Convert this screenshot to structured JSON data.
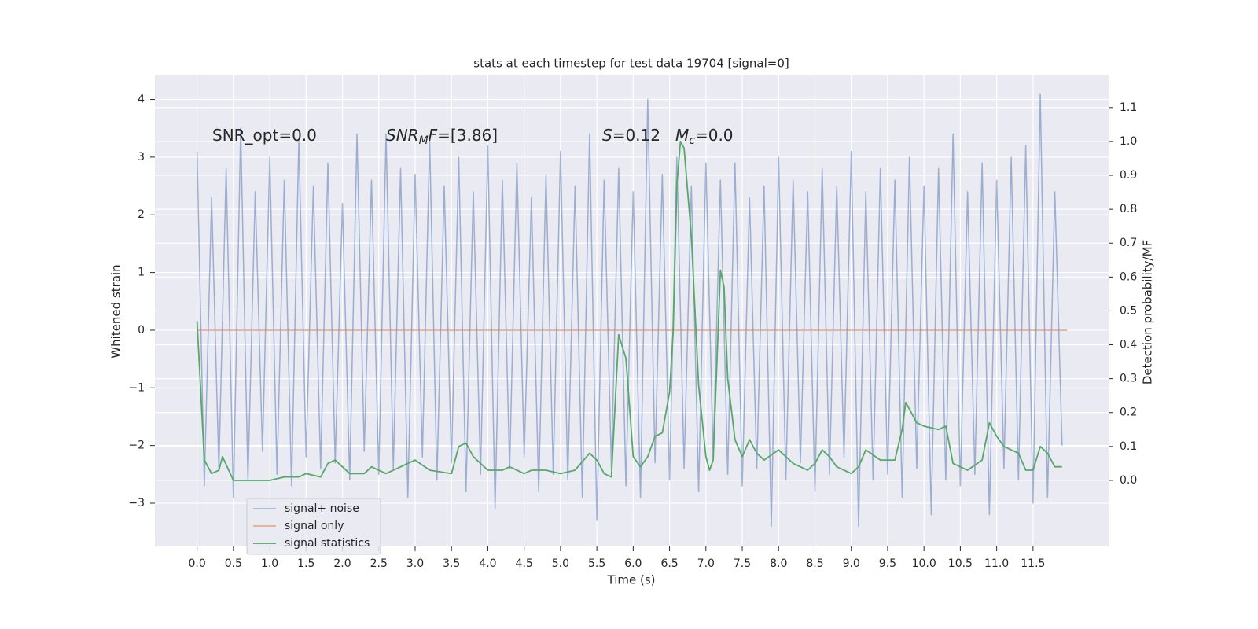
{
  "chart_data": {
    "type": "line",
    "title": "stats at each timestep for test data 19704 [signal=0]",
    "xlabel": "Time (s)",
    "ylabel": "Whitened strain",
    "y2label": "Detection probability/MF",
    "xlim": [
      -0.58,
      12.54
    ],
    "ylim": [
      -3.75,
      4.43
    ],
    "y2lim": [
      -0.195,
      1.197
    ],
    "grid": true,
    "legend": "lower left",
    "xticks": [
      {
        "value": 0,
        "label": "0.0"
      },
      0.5,
      {
        "value": 1,
        "label": "1.0"
      },
      1.5,
      {
        "value": 2,
        "label": "2.0"
      },
      2.5,
      {
        "value": 3,
        "label": "3.0"
      },
      3.5,
      {
        "value": 4,
        "label": "4.0"
      },
      4.5,
      {
        "value": 5,
        "label": "5.0"
      },
      5.5,
      {
        "value": 6,
        "label": "6.0"
      },
      6.5,
      {
        "value": 7,
        "label": "7.0"
      },
      7.5,
      {
        "value": 8,
        "label": "8.0"
      },
      8.5,
      {
        "value": 9,
        "label": "9.0"
      },
      9.5,
      {
        "value": 10,
        "label": "10.0"
      },
      10.5,
      {
        "value": 11,
        "label": "11.0"
      },
      11.5
    ],
    "yticks": [
      {
        "value": -3,
        "label": "−3"
      },
      {
        "value": -2,
        "label": "−2"
      },
      {
        "value": -1,
        "label": "−1"
      },
      0,
      1,
      2,
      3,
      4
    ],
    "y2ticks": [
      {
        "value": 0,
        "label": "0.0"
      },
      0.1,
      0.2,
      0.3,
      0.4,
      0.5,
      0.6,
      0.7,
      0.8,
      0.9,
      {
        "value": 1,
        "label": "1.0"
      },
      1.1
    ],
    "annotations": [
      [
        {
          "text": "SNR_opt=0.0"
        }
      ],
      [
        {
          "text": "SNR",
          "italic": true
        },
        {
          "text": "M",
          "italic": true,
          "sub": true
        },
        {
          "text": "F",
          "italic": true
        },
        {
          "text": "=[3.86]"
        }
      ],
      [
        {
          "text": "S",
          "italic": true
        },
        {
          "text": "=0.12"
        }
      ],
      [
        {
          "text": "M",
          "italic": true
        },
        {
          "text": "c",
          "italic": true,
          "sub": true
        },
        {
          "text": "=0.0"
        }
      ]
    ],
    "series": [
      {
        "name": "signal+ noise",
        "color": "#4c72b0",
        "axis": "y",
        "x": [
          0.0,
          0.1,
          0.2,
          0.3,
          0.4,
          0.5,
          0.6,
          0.7,
          0.8,
          0.9,
          1.0,
          1.1,
          1.2,
          1.3,
          1.4,
          1.5,
          1.6,
          1.7,
          1.8,
          1.9,
          2.0,
          2.1,
          2.2,
          2.3,
          2.4,
          2.5,
          2.6,
          2.7,
          2.8,
          2.9,
          3.0,
          3.1,
          3.2,
          3.3,
          3.4,
          3.5,
          3.6,
          3.7,
          3.8,
          3.9,
          4.0,
          4.1,
          4.2,
          4.3,
          4.4,
          4.5,
          4.6,
          4.7,
          4.8,
          4.9,
          5.0,
          5.1,
          5.2,
          5.3,
          5.4,
          5.5,
          5.6,
          5.7,
          5.8,
          5.9,
          6.0,
          6.1,
          6.2,
          6.3,
          6.4,
          6.5,
          6.6,
          6.7,
          6.8,
          6.9,
          7.0,
          7.1,
          7.2,
          7.3,
          7.4,
          7.5,
          7.6,
          7.7,
          7.8,
          7.9,
          8.0,
          8.1,
          8.2,
          8.3,
          8.4,
          8.5,
          8.6,
          8.7,
          8.8,
          8.9,
          9.0,
          9.1,
          9.2,
          9.3,
          9.4,
          9.5,
          9.6,
          9.7,
          9.8,
          9.9,
          10.0,
          10.1,
          10.2,
          10.3,
          10.4,
          10.5,
          10.6,
          10.7,
          10.8,
          10.9,
          11.0,
          11.1,
          11.2,
          11.3,
          11.4,
          11.5,
          11.6,
          11.7,
          11.8,
          11.9
        ],
        "values": [
          3.1,
          -2.7,
          2.3,
          -2.4,
          2.8,
          -2.9,
          3.5,
          -2.6,
          2.4,
          -2.1,
          3.0,
          -2.5,
          2.6,
          -2.7,
          3.3,
          -2.2,
          2.5,
          -2.4,
          2.9,
          -2.3,
          2.2,
          -2.6,
          3.4,
          -2.1,
          2.6,
          -2.5,
          3.4,
          -2.4,
          2.8,
          -2.9,
          2.7,
          -2.2,
          3.3,
          -2.6,
          2.5,
          -2.3,
          3.0,
          -2.8,
          2.4,
          -2.5,
          3.2,
          -3.1,
          2.6,
          -2.4,
          2.9,
          -2.2,
          2.3,
          -2.8,
          2.7,
          -2.5,
          3.1,
          -2.6,
          2.5,
          -2.9,
          3.4,
          -3.3,
          2.6,
          -2.4,
          2.8,
          -2.7,
          2.4,
          -2.9,
          4.0,
          -2.3,
          2.7,
          -2.6,
          3.0,
          -2.4,
          2.5,
          -2.8,
          2.9,
          -2.2,
          2.6,
          -2.5,
          2.9,
          -2.7,
          2.3,
          -2.4,
          2.5,
          -3.4,
          3.0,
          -2.6,
          2.6,
          -2.3,
          2.4,
          -2.8,
          2.8,
          -2.5,
          2.5,
          -2.2,
          3.1,
          -3.4,
          2.4,
          -2.6,
          2.8,
          -2.5,
          2.6,
          -2.9,
          3.0,
          -2.4,
          2.5,
          -3.2,
          2.8,
          -2.6,
          3.4,
          -2.7,
          2.4,
          -2.5,
          2.9,
          -3.2,
          2.6,
          -2.4,
          3.0,
          -2.6,
          3.2,
          -3.0,
          4.1,
          -2.9,
          2.4,
          -2.0
        ]
      },
      {
        "name": "signal only",
        "color": "#dd8452",
        "axis": "y",
        "x": [
          0.0,
          11.97
        ],
        "values": [
          0,
          0
        ]
      },
      {
        "name": "signal statistics",
        "color": "#55a868",
        "axis": "y2",
        "x": [
          0.0,
          0.1,
          0.2,
          0.3,
          0.35,
          0.5,
          0.7,
          0.8,
          1.0,
          1.2,
          1.4,
          1.5,
          1.7,
          1.8,
          1.9,
          2.0,
          2.1,
          2.3,
          2.4,
          2.5,
          2.6,
          2.8,
          3.0,
          3.2,
          3.5,
          3.6,
          3.7,
          3.8,
          4.0,
          4.2,
          4.3,
          4.5,
          4.6,
          4.8,
          5.0,
          5.2,
          5.4,
          5.5,
          5.6,
          5.7,
          5.8,
          5.9,
          6.0,
          6.1,
          6.2,
          6.3,
          6.4,
          6.5,
          6.55,
          6.6,
          6.65,
          6.7,
          6.8,
          6.9,
          7.0,
          7.05,
          7.1,
          7.2,
          7.25,
          7.3,
          7.4,
          7.5,
          7.6,
          7.7,
          7.8,
          8.0,
          8.2,
          8.4,
          8.5,
          8.6,
          8.7,
          8.8,
          9.0,
          9.1,
          9.2,
          9.4,
          9.6,
          9.7,
          9.75,
          9.9,
          10.0,
          10.2,
          10.3,
          10.4,
          10.6,
          10.8,
          10.9,
          11.0,
          11.1,
          11.3,
          11.4,
          11.5,
          11.6,
          11.7,
          11.8,
          11.9
        ],
        "values": [
          0.47,
          0.06,
          0.02,
          0.03,
          0.07,
          0.0,
          0.0,
          0.0,
          0.0,
          0.01,
          0.01,
          0.02,
          0.01,
          0.05,
          0.06,
          0.04,
          0.02,
          0.02,
          0.04,
          0.03,
          0.02,
          0.04,
          0.06,
          0.03,
          0.02,
          0.1,
          0.11,
          0.07,
          0.03,
          0.03,
          0.04,
          0.02,
          0.03,
          0.03,
          0.02,
          0.03,
          0.08,
          0.06,
          0.02,
          0.01,
          0.43,
          0.36,
          0.07,
          0.04,
          0.07,
          0.13,
          0.14,
          0.26,
          0.44,
          0.87,
          1.0,
          0.98,
          0.72,
          0.28,
          0.07,
          0.03,
          0.06,
          0.62,
          0.57,
          0.3,
          0.12,
          0.07,
          0.12,
          0.08,
          0.06,
          0.09,
          0.05,
          0.03,
          0.05,
          0.09,
          0.07,
          0.04,
          0.02,
          0.04,
          0.09,
          0.06,
          0.06,
          0.15,
          0.23,
          0.17,
          0.16,
          0.15,
          0.16,
          0.05,
          0.03,
          0.06,
          0.17,
          0.13,
          0.1,
          0.08,
          0.03,
          0.03,
          0.1,
          0.08,
          0.04,
          0.04
        ]
      }
    ]
  }
}
